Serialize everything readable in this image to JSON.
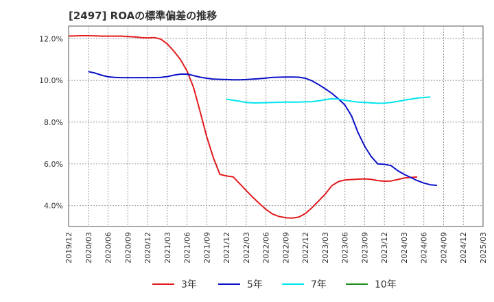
{
  "chart_data": {
    "type": "line",
    "title": "[2497]  ROAの標準偏差の推移",
    "xlabel": "",
    "ylabel": "",
    "ylim": [
      3.0,
      12.6
    ],
    "yticks": [
      4.0,
      6.0,
      8.0,
      10.0,
      12.0
    ],
    "ytick_labels": [
      "4.0%",
      "6.0%",
      "8.0%",
      "10.0%",
      "12.0%"
    ],
    "grid": true,
    "legend_position": "bottom",
    "x_categories": [
      "2019/12",
      "2020/03",
      "2020/06",
      "2020/09",
      "2020/12",
      "2021/03",
      "2021/06",
      "2021/09",
      "2021/12",
      "2022/03",
      "2022/06",
      "2022/09",
      "2022/12",
      "2023/03",
      "2023/06",
      "2023/09",
      "2023/12",
      "2024/03",
      "2024/06",
      "2024/09",
      "2024/12",
      "2025/03"
    ],
    "series": [
      {
        "name": "3年",
        "color": "#e31a1c",
        "start_index": 0,
        "values": [
          12.12,
          12.13,
          12.14,
          12.14,
          12.13,
          12.12,
          12.12,
          12.12,
          12.12,
          12.1,
          12.08,
          12.05,
          12.03,
          12.05,
          11.98,
          11.75,
          11.4,
          11.0,
          10.45,
          9.65,
          8.5,
          7.3,
          6.3,
          5.5,
          5.42,
          5.38,
          5.05,
          4.72,
          4.4,
          4.1,
          3.82,
          3.6,
          3.48,
          3.42,
          3.4,
          3.45,
          3.62,
          3.9,
          4.22,
          4.55,
          4.95,
          5.15,
          5.23,
          5.25,
          5.27,
          5.28,
          5.26,
          5.2,
          5.17,
          5.18,
          5.25,
          5.32,
          5.35,
          5.37
        ]
      },
      {
        "name": "5年",
        "color": "#0a10c8",
        "start_index": 3,
        "values": [
          10.42,
          10.35,
          10.25,
          10.17,
          10.14,
          10.13,
          10.13,
          10.13,
          10.13,
          10.13,
          10.13,
          10.14,
          10.18,
          10.25,
          10.3,
          10.3,
          10.23,
          10.15,
          10.1,
          10.06,
          10.05,
          10.04,
          10.03,
          10.03,
          10.04,
          10.06,
          10.08,
          10.11,
          10.14,
          10.15,
          10.16,
          10.16,
          10.15,
          10.1,
          9.98,
          9.8,
          9.6,
          9.38,
          9.12,
          8.82,
          8.3,
          7.5,
          6.85,
          6.35,
          6.0,
          5.98,
          5.92,
          5.68,
          5.5,
          5.35,
          5.2,
          5.08,
          5.0,
          4.97
        ]
      },
      {
        "name": "7年",
        "color": "#00e5ee",
        "start_index": 24,
        "values": [
          9.1,
          9.05,
          9.0,
          8.94,
          8.92,
          8.92,
          8.93,
          8.94,
          8.95,
          8.96,
          8.96,
          8.96,
          8.97,
          8.98,
          9.02,
          9.08,
          9.12,
          9.1,
          9.05,
          9.0,
          8.96,
          8.94,
          8.92,
          8.9,
          8.91,
          8.94,
          8.99,
          9.05,
          9.1,
          9.15,
          9.18,
          9.2
        ]
      },
      {
        "name": "10年",
        "color": "#1a8c1a",
        "start_index": 0,
        "values": []
      }
    ]
  }
}
